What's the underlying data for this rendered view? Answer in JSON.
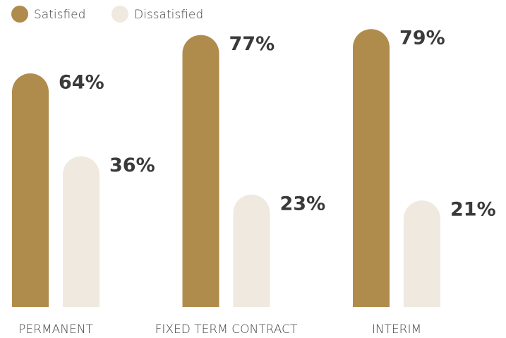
{
  "chart_data": {
    "type": "bar",
    "categories": [
      "PERMANENT",
      "FIXED TERM CONTRACT",
      "INTERIM"
    ],
    "series": [
      {
        "name": "Satisfied",
        "color": "#b08c4c",
        "values": [
          64,
          77,
          79
        ],
        "value_labels": [
          "64%",
          "77%",
          "79%"
        ]
      },
      {
        "name": "Dissatisfied",
        "color": "#f0e9df",
        "values": [
          36,
          23,
          21
        ],
        "value_labels": [
          "36%",
          "23%",
          "21%"
        ]
      }
    ],
    "ylim": [
      -15,
      80
    ],
    "grid": false,
    "legend": "top-left"
  }
}
